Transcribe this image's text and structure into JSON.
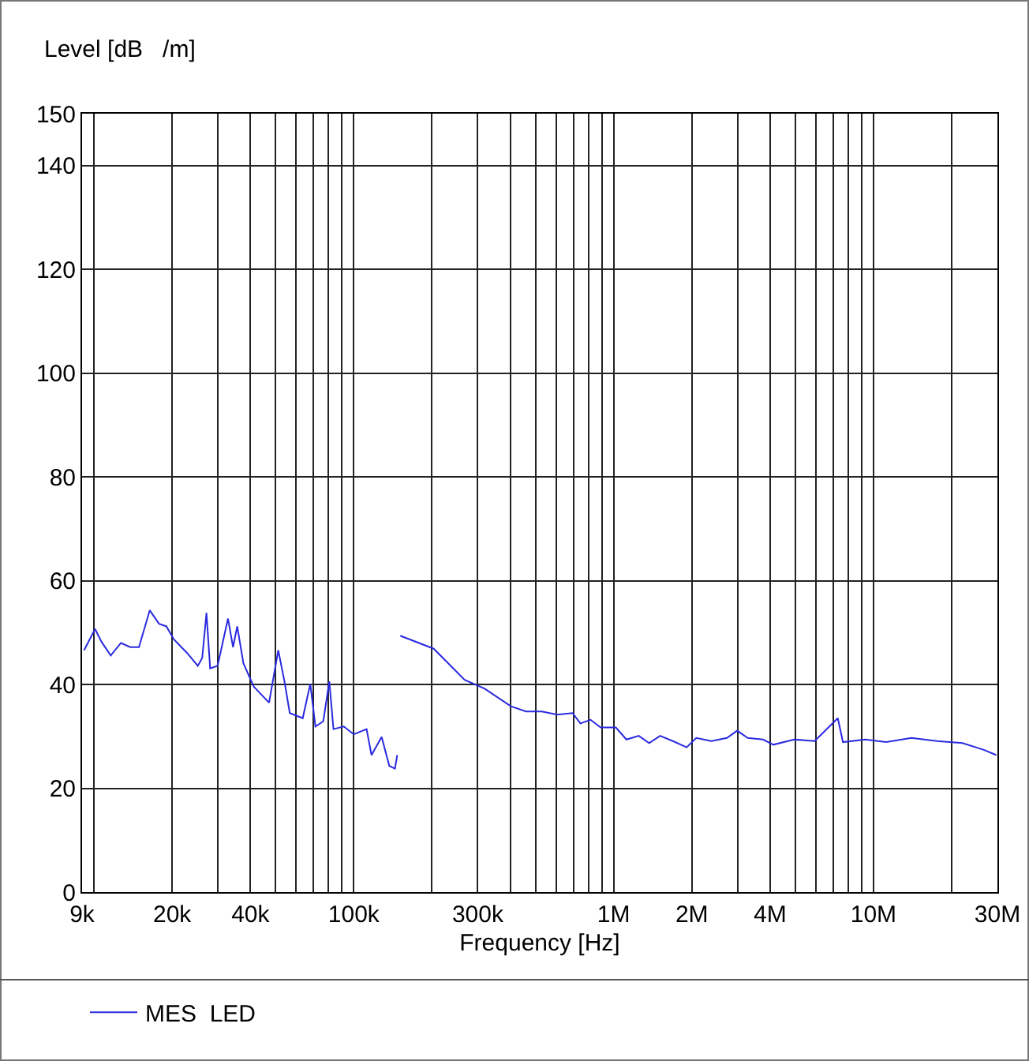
{
  "chart_data": {
    "type": "line",
    "ylabel": "Level [dB   /m]",
    "xlabel": "Frequency [Hz]",
    "log": "x",
    "grid": true,
    "legend": "bottom",
    "marker": "none",
    "line_style": "solid",
    "xlim": [
      9000,
      30000000
    ],
    "xticks": [
      {
        "value": 9000,
        "label": "9k"
      },
      {
        "value": 10000,
        "label": null
      },
      {
        "value": 20000,
        "label": "20k"
      },
      {
        "value": 30000,
        "label": null
      },
      {
        "value": 40000,
        "label": "40k"
      },
      {
        "value": 50000,
        "label": null
      },
      {
        "value": 60000,
        "label": null
      },
      {
        "value": 70000,
        "label": null
      },
      {
        "value": 80000,
        "label": null
      },
      {
        "value": 90000,
        "label": null
      },
      {
        "value": 100000,
        "label": "100k"
      },
      {
        "value": 200000,
        "label": null
      },
      {
        "value": 300000,
        "label": "300k"
      },
      {
        "value": 400000,
        "label": null
      },
      {
        "value": 500000,
        "label": null
      },
      {
        "value": 600000,
        "label": null
      },
      {
        "value": 700000,
        "label": null
      },
      {
        "value": 800000,
        "label": null
      },
      {
        "value": 900000,
        "label": null
      },
      {
        "value": 1000000,
        "label": "1M"
      },
      {
        "value": 2000000,
        "label": "2M"
      },
      {
        "value": 3000000,
        "label": null
      },
      {
        "value": 4000000,
        "label": "4M"
      },
      {
        "value": 5000000,
        "label": null
      },
      {
        "value": 6000000,
        "label": null
      },
      {
        "value": 7000000,
        "label": null
      },
      {
        "value": 8000000,
        "label": null
      },
      {
        "value": 9000000,
        "label": null
      },
      {
        "value": 10000000,
        "label": "10M"
      },
      {
        "value": 20000000,
        "label": null
      },
      {
        "value": 30000000,
        "label": "30M"
      }
    ],
    "ylim": [
      0,
      150
    ],
    "yticks": [
      0,
      20,
      40,
      60,
      80,
      100,
      120,
      140,
      150
    ],
    "series": [
      {
        "name": "MES  LED",
        "color": "#2a2ae0",
        "x": [
          9160,
          10100,
          10700,
          11600,
          12700,
          13800,
          14900,
          16400,
          17800,
          19000,
          20300,
          22800,
          25100,
          26100,
          27100,
          28000,
          29900,
          32800,
          34300,
          35600,
          37600,
          41200,
          47200,
          51200,
          54100,
          56700,
          63600,
          68000,
          71200,
          76300,
          80500,
          83500,
          91500,
          100000,
          112000,
          117000,
          128000,
          137000,
          144000,
          147000,
          149000,
          151000,
          203000,
          267000,
          319000,
          402000,
          460000,
          529000,
          607000,
          695000,
          745000,
          815000,
          892000,
          1020000,
          1120000,
          1250000,
          1370000,
          1510000,
          1690000,
          1910000,
          2080000,
          2380000,
          2730000,
          2990000,
          3280000,
          3760000,
          4120000,
          4950000,
          5940000,
          7290000,
          7630000,
          9300000,
          11200000,
          14000000,
          17600000,
          22000000,
          26600000,
          29700000
        ],
        "values": [
          46.6,
          50.7,
          48.2,
          45.6,
          48.0,
          47.2,
          47.2,
          54.3,
          51.7,
          51.2,
          48.7,
          46.1,
          43.6,
          45.1,
          53.8,
          43.1,
          43.6,
          52.7,
          47.2,
          51.2,
          44.1,
          39.6,
          36.5,
          46.6,
          40.6,
          34.5,
          33.5,
          40.1,
          31.9,
          32.9,
          40.6,
          31.4,
          31.9,
          30.4,
          31.4,
          26.4,
          29.9,
          24.3,
          23.8,
          26.4,
          null,
          49.4,
          46.9,
          40.9,
          39.2,
          35.8,
          34.8,
          34.8,
          34.2,
          34.5,
          32.5,
          33.2,
          31.7,
          31.7,
          29.4,
          30.1,
          28.7,
          30.1,
          29.1,
          27.9,
          29.7,
          29.1,
          29.7,
          31.1,
          29.7,
          29.4,
          28.4,
          29.4,
          29.1,
          33.5,
          28.9,
          29.4,
          28.9,
          29.7,
          29.1,
          28.7,
          27.4,
          26.4
        ]
      }
    ]
  }
}
